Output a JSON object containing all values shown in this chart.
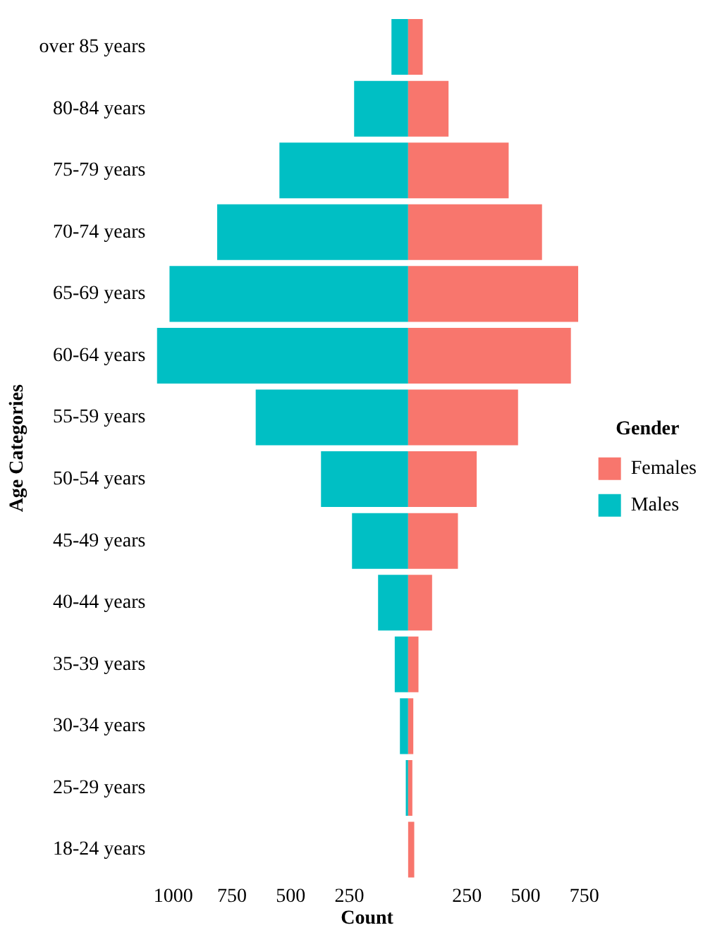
{
  "chart_data": {
    "type": "bar",
    "orientation": "horizontal",
    "stacked": true,
    "xlabel": "Count",
    "ylabel": "Age Categories",
    "legend_title": "Gender",
    "legend": "right",
    "categories": [
      "over 85 years",
      "80-84 years",
      "75-79 years",
      "70-74 years",
      "65-69 years",
      "60-64 years",
      "55-59 years",
      "50-54 years",
      "45-49 years",
      "40-44 years",
      "35-39 years",
      "30-34 years",
      "25-29 years",
      "18-24 years"
    ],
    "series": [
      {
        "name": "Females",
        "color": "#f8766d",
        "values": [
          62,
          172,
          428,
          570,
          724,
          693,
          468,
          292,
          212,
          102,
          44,
          22,
          18,
          26
        ]
      },
      {
        "name": "Males",
        "color": "#00bfc4",
        "values": [
          -71,
          -230,
          -548,
          -813,
          -1016,
          -1069,
          -649,
          -371,
          -239,
          -128,
          -57,
          -35,
          -10,
          null
        ]
      }
    ],
    "xlim": [
      -1100,
      750
    ],
    "xticks": [
      {
        "value": -1000,
        "label": "1000"
      },
      {
        "value": -750,
        "label": "750"
      },
      {
        "value": -500,
        "label": "500"
      },
      {
        "value": -250,
        "label": "250"
      },
      250,
      500,
      750
    ],
    "grid": false
  }
}
